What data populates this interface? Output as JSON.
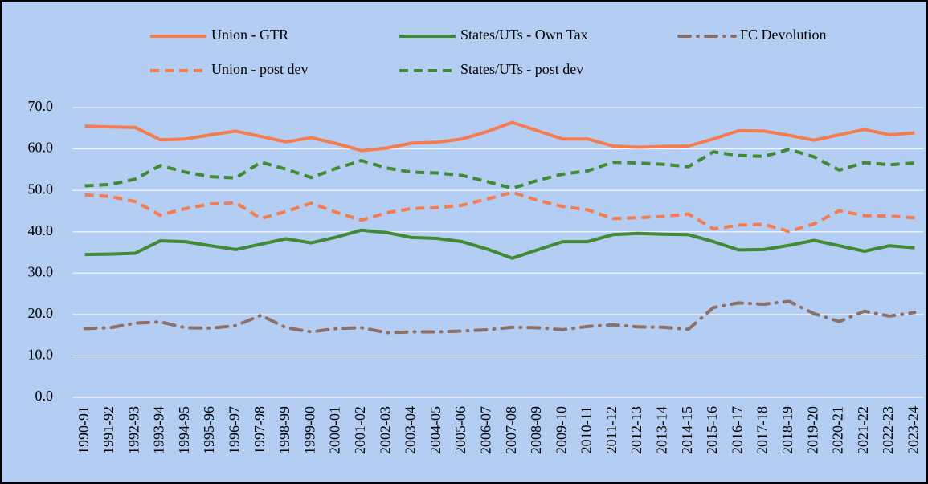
{
  "chart_data": {
    "type": "line",
    "categories": [
      "1990-91",
      "1991-92",
      "1992-93",
      "1993-94",
      "1994-95",
      "1995-96",
      "1996-97",
      "1997-98",
      "1998-99",
      "1999-00",
      "2000-01",
      "2001-02",
      "2002-03",
      "2003-04",
      "2004-05",
      "2005-06",
      "2006-07",
      "2007-08",
      "2008-09",
      "2009-10",
      "2010-11",
      "2011-12",
      "2012-13",
      "2013-14",
      "2014-15",
      "2015-16",
      "2016-17",
      "2017-18",
      "2018-19",
      "2019-20",
      "2020-21",
      "2021-22",
      "2022-23",
      "2023-24"
    ],
    "series": [
      {
        "name": "Union - GTR",
        "color": "#f47c4e",
        "style": "solid",
        "values": [
          65.5,
          65.3,
          65.2,
          62.2,
          62.4,
          63.4,
          64.3,
          63.0,
          61.7,
          62.7,
          61.3,
          59.6,
          60.2,
          61.4,
          61.6,
          62.4,
          64.2,
          66.4,
          64.4,
          62.4,
          62.4,
          60.7,
          60.4,
          60.6,
          60.7,
          62.4,
          64.4,
          64.3,
          63.3,
          62.1,
          63.4,
          64.7,
          63.4,
          63.9
        ]
      },
      {
        "name": "States/UTs - Own Tax",
        "color": "#3f8a33",
        "style": "solid",
        "values": [
          34.5,
          34.6,
          34.8,
          37.8,
          37.6,
          36.6,
          35.7,
          37.0,
          38.3,
          37.3,
          38.7,
          40.4,
          39.8,
          38.6,
          38.4,
          37.6,
          35.8,
          33.6,
          35.6,
          37.6,
          37.6,
          39.3,
          39.6,
          39.4,
          39.3,
          37.6,
          35.6,
          35.7,
          36.7,
          37.9,
          36.6,
          35.3,
          36.6,
          36.1
        ]
      },
      {
        "name": "FC Devolution",
        "color": "#8c7068",
        "style": "dashdot",
        "values": [
          16.6,
          16.8,
          17.9,
          18.2,
          16.8,
          16.7,
          17.3,
          19.8,
          16.8,
          15.8,
          16.6,
          16.8,
          15.6,
          15.8,
          15.8,
          16.0,
          16.3,
          16.9,
          16.8,
          16.3,
          17.1,
          17.5,
          17.0,
          16.9,
          16.4,
          21.7,
          22.8,
          22.5,
          23.2,
          20.2,
          18.3,
          20.8,
          19.6,
          20.5
        ]
      },
      {
        "name": "Union - post dev",
        "color": "#f47c4e",
        "style": "dashed",
        "values": [
          48.9,
          48.5,
          47.3,
          44.0,
          45.6,
          46.7,
          47.0,
          43.2,
          44.9,
          46.9,
          44.7,
          42.8,
          44.6,
          45.6,
          45.8,
          46.4,
          47.9,
          49.5,
          47.6,
          46.1,
          45.3,
          43.2,
          43.4,
          43.7,
          44.3,
          40.7,
          41.6,
          41.8,
          40.1,
          41.9,
          45.1,
          43.9,
          43.8,
          43.4
        ]
      },
      {
        "name": "States/UTs - post dev",
        "color": "#3f8a33",
        "style": "dashed",
        "values": [
          51.1,
          51.4,
          52.7,
          56.0,
          54.4,
          53.3,
          53.0,
          56.8,
          55.1,
          53.1,
          55.3,
          57.2,
          55.4,
          54.4,
          54.2,
          53.6,
          52.1,
          50.5,
          52.4,
          53.9,
          54.7,
          56.8,
          56.6,
          56.3,
          55.7,
          59.3,
          58.4,
          58.2,
          59.9,
          58.1,
          54.9,
          56.7,
          56.2,
          56.6
        ]
      }
    ],
    "ylim": [
      0,
      70
    ],
    "yticks": [
      {
        "value": 0,
        "label": "0.0"
      },
      {
        "value": 10,
        "label": "10.0"
      },
      {
        "value": 20,
        "label": "20.0"
      },
      {
        "value": 30,
        "label": "30.0"
      },
      {
        "value": 40,
        "label": "40.0"
      },
      {
        "value": 50,
        "label": "50.0"
      },
      {
        "value": 60,
        "label": "60.0"
      },
      {
        "value": 70,
        "label": "70.0"
      }
    ],
    "grid": true,
    "legend": "top"
  }
}
